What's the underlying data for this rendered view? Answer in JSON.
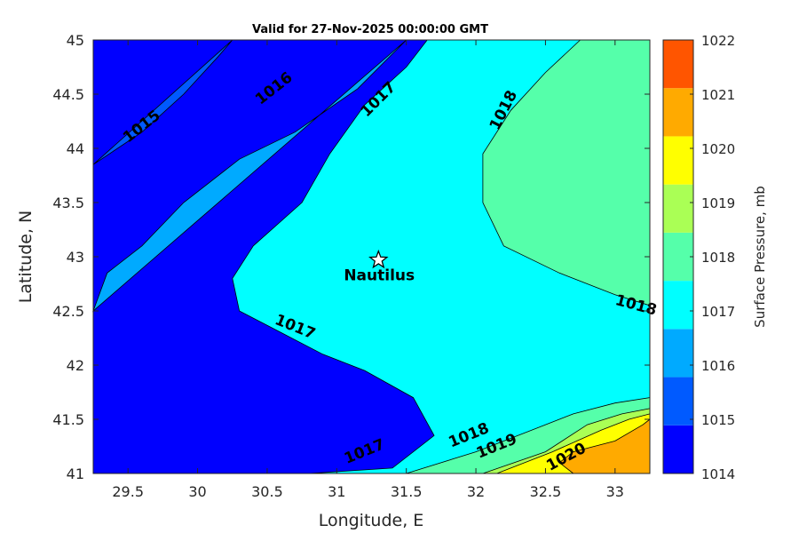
{
  "chart_data": {
    "type": "contourf",
    "title": "Valid for 27-Nov-2025 00:00:00 GMT",
    "xlabel": "Longitude, E",
    "ylabel": "Latitude, N",
    "xlim": [
      29.25,
      33.25
    ],
    "ylim": [
      41,
      45
    ],
    "xticks": [
      29.5,
      30,
      30.5,
      31,
      31.5,
      32,
      32.5,
      33
    ],
    "xtick_labels": [
      "29.5",
      "30",
      "30.5",
      "31",
      "31.5",
      "32",
      "32.5",
      "33"
    ],
    "yticks": [
      41,
      41.5,
      42,
      42.5,
      43,
      43.5,
      44,
      44.5,
      45
    ],
    "ytick_labels": [
      "41",
      "41.5",
      "42",
      "42.5",
      "43",
      "43.5",
      "44",
      "44.5",
      "45"
    ],
    "colorbar": {
      "label": "Surface Pressure, mb",
      "range": [
        1014,
        1022
      ],
      "ticks": [
        1014,
        1015,
        1016,
        1017,
        1018,
        1019,
        1020,
        1021,
        1022
      ],
      "tick_labels": [
        "1014",
        "1015",
        "1016",
        "1017",
        "1018",
        "1019",
        "1020",
        "1021",
        "1022"
      ],
      "colors": [
        "#0000ff",
        "#005aff",
        "#00aaff",
        "#00ffff",
        "#55ffaa",
        "#aaff55",
        "#ffff00",
        "#ffaa00",
        "#ff5500"
      ]
    },
    "levels": [
      {
        "value": 1015,
        "color": "#005aff",
        "boundary": [
          [
            29.25,
            43.85
          ],
          [
            29.6,
            44.15
          ],
          [
            29.9,
            44.5
          ],
          [
            30.15,
            44.85
          ],
          [
            30.25,
            45
          ]
        ]
      },
      {
        "value": 1016,
        "color": "#00aaff",
        "boundary": [
          [
            29.25,
            42.5
          ],
          [
            29.35,
            42.85
          ],
          [
            29.6,
            43.1
          ],
          [
            29.9,
            43.5
          ],
          [
            30.3,
            43.9
          ],
          [
            30.7,
            44.15
          ],
          [
            31.15,
            44.55
          ],
          [
            31.5,
            45
          ]
        ]
      },
      {
        "value": 1017,
        "color": "#00ffff",
        "boundary": [
          [
            33.25,
            41.55
          ],
          [
            32.8,
            41.45
          ],
          [
            32.3,
            41.25
          ],
          [
            31.8,
            41.1
          ],
          [
            31.5,
            41.0
          ],
          [
            30.8,
            41.0
          ],
          [
            31.4,
            41.05
          ],
          [
            31.7,
            41.35
          ],
          [
            31.55,
            41.7
          ],
          [
            31.2,
            41.95
          ],
          [
            30.9,
            42.1
          ],
          [
            30.6,
            42.3
          ],
          [
            30.3,
            42.5
          ],
          [
            30.25,
            42.8
          ],
          [
            30.4,
            43.1
          ],
          [
            30.75,
            43.5
          ],
          [
            30.95,
            43.95
          ],
          [
            31.2,
            44.4
          ],
          [
            31.5,
            44.75
          ],
          [
            31.65,
            45
          ],
          [
            33.25,
            45
          ]
        ]
      },
      {
        "value": 1018,
        "color": "#55ffaa",
        "boundary": [
          [
            33.25,
            45
          ],
          [
            32.75,
            45
          ],
          [
            32.5,
            44.7
          ],
          [
            32.25,
            44.35
          ],
          [
            32.05,
            43.95
          ],
          [
            32.05,
            43.5
          ],
          [
            32.2,
            43.1
          ],
          [
            32.6,
            42.85
          ],
          [
            33.0,
            42.65
          ],
          [
            33.25,
            42.55
          ]
        ]
      },
      {
        "value": 1018,
        "color": "#55ffaa",
        "boundary": [
          [
            31.5,
            41.0
          ],
          [
            32.0,
            41.2
          ],
          [
            32.4,
            41.4
          ],
          [
            32.7,
            41.55
          ],
          [
            33.0,
            41.65
          ],
          [
            33.25,
            41.7
          ],
          [
            33.25,
            41.0
          ]
        ]
      },
      {
        "value": 1019,
        "color": "#aaff55",
        "boundary": [
          [
            32.05,
            41.0
          ],
          [
            32.5,
            41.2
          ],
          [
            32.8,
            41.45
          ],
          [
            33.05,
            41.55
          ],
          [
            33.25,
            41.6
          ],
          [
            33.25,
            41.0
          ]
        ]
      },
      {
        "value": 1020,
        "color": "#ffff00",
        "boundary": [
          [
            32.15,
            41.0
          ],
          [
            32.55,
            41.2
          ],
          [
            32.9,
            41.4
          ],
          [
            33.1,
            41.5
          ],
          [
            33.25,
            41.55
          ],
          [
            33.25,
            41.0
          ]
        ]
      },
      {
        "value": 1021,
        "color": "#ffaa00",
        "boundary": [
          [
            32.7,
            41.0
          ],
          [
            32.6,
            41.1
          ],
          [
            32.7,
            41.2
          ],
          [
            33.0,
            41.3
          ],
          [
            33.2,
            41.45
          ],
          [
            33.25,
            41.5
          ],
          [
            33.25,
            41.0
          ]
        ]
      }
    ],
    "isoline_labels": [
      {
        "text": "1015",
        "lon": 29.6,
        "lat": 44.2,
        "angle": -38
      },
      {
        "text": "1016",
        "lon": 30.55,
        "lat": 44.55,
        "angle": -38
      },
      {
        "text": "1017",
        "lon": 31.3,
        "lat": 44.45,
        "angle": -45
      },
      {
        "text": "1018",
        "lon": 32.2,
        "lat": 44.35,
        "angle": -63
      },
      {
        "text": "1018",
        "lon": 33.15,
        "lat": 42.55,
        "angle": 15
      },
      {
        "text": "1017",
        "lon": 30.7,
        "lat": 42.35,
        "angle": 22
      },
      {
        "text": "1017",
        "lon": 31.2,
        "lat": 41.2,
        "angle": -22
      },
      {
        "text": "1018",
        "lon": 31.95,
        "lat": 41.35,
        "angle": -22
      },
      {
        "text": "1019",
        "lon": 32.15,
        "lat": 41.25,
        "angle": -22
      },
      {
        "text": "1020",
        "lon": 32.65,
        "lat": 41.15,
        "angle": -28
      }
    ],
    "marker": {
      "name": "Nautilus",
      "lon": 31.3,
      "lat": 42.97
    }
  }
}
